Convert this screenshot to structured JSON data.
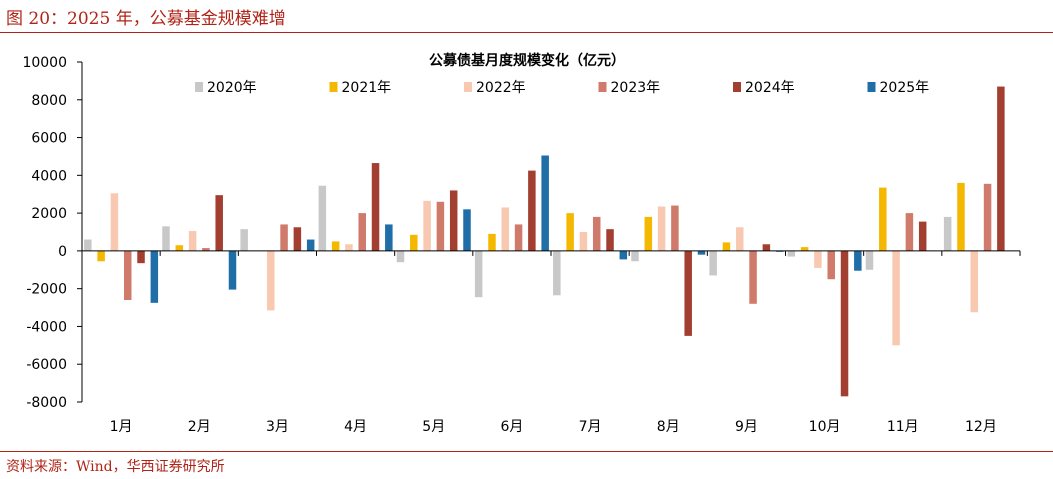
{
  "figure": {
    "title": "图 20：2025 年，公募基金规模难增",
    "source": "资料来源：Wind，华西证券研究所"
  },
  "chart_data": {
    "type": "bar",
    "title": "公募债基月度规模变化（亿元）",
    "xlabel": "",
    "ylabel": "",
    "categories": [
      "1月",
      "2月",
      "3月",
      "4月",
      "5月",
      "6月",
      "7月",
      "8月",
      "9月",
      "10月",
      "11月",
      "12月"
    ],
    "ylim": [
      -8000,
      10000
    ],
    "yticks": [
      -8000,
      -6000,
      -4000,
      -2000,
      0,
      2000,
      4000,
      6000,
      8000,
      10000
    ],
    "grid": false,
    "legend": "top",
    "series": [
      {
        "name": "2020年",
        "color": "#c8c8c8",
        "values": [
          600,
          1300,
          1150,
          3450,
          -600,
          -2450,
          -2350,
          -550,
          -1300,
          -300,
          -1000,
          1800
        ]
      },
      {
        "name": "2021年",
        "color": "#f5b800",
        "values": [
          -550,
          300,
          null,
          500,
          850,
          900,
          2000,
          1800,
          450,
          200,
          3350,
          3600
        ]
      },
      {
        "name": "2022年",
        "color": "#f8c9b0",
        "values": [
          3050,
          1050,
          -3150,
          350,
          2650,
          2300,
          1000,
          2350,
          1250,
          -900,
          -5000,
          -3250
        ]
      },
      {
        "name": "2023年",
        "color": "#cf7a6a",
        "values": [
          -2600,
          150,
          1400,
          2000,
          2600,
          1400,
          1800,
          2400,
          -2800,
          -1500,
          2000,
          3550
        ]
      },
      {
        "name": "2024年",
        "color": "#a33f30",
        "values": [
          -650,
          2950,
          1250,
          4650,
          3200,
          4250,
          1150,
          -4500,
          350,
          -7700,
          1550,
          8700
        ]
      },
      {
        "name": "2025年",
        "color": "#1f6ea8",
        "values": [
          -2750,
          -2050,
          600,
          1400,
          2200,
          5050,
          -450,
          -200,
          -50,
          -1050,
          null,
          null
        ]
      }
    ]
  }
}
